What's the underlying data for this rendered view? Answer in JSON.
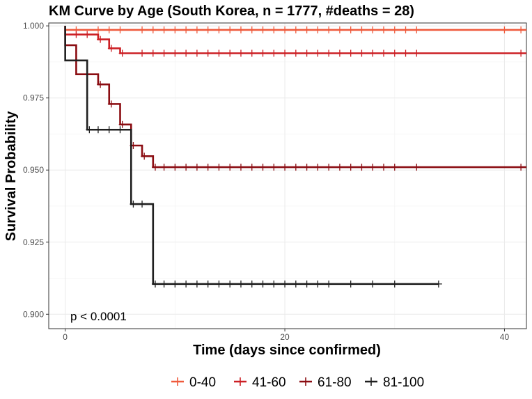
{
  "chart_data": {
    "type": "line",
    "title": "KM Curve by Age (South Korea, n = 1777, #deaths = 28)",
    "xlabel": "Time (days since confirmed)",
    "ylabel": "Survival Probability",
    "xlim": [
      -1.5,
      42
    ],
    "ylim": [
      0.895,
      1.001
    ],
    "x_ticks": [
      0,
      20,
      40
    ],
    "x_tick_labels": [
      "0",
      "20",
      "40"
    ],
    "y_ticks": [
      0.9,
      0.925,
      0.95,
      0.975,
      1.0
    ],
    "y_tick_labels": [
      "0.900",
      "0.925",
      "0.950",
      "0.975",
      "1.000"
    ],
    "grid": true,
    "legend_position": "bottom",
    "annotation": "p < 0.0001",
    "series": [
      {
        "name": "0-40",
        "color": "#ef5a3c",
        "steps": [
          [
            0,
            1.0
          ],
          [
            0,
            0.9986
          ],
          [
            42,
            0.9986
          ]
        ],
        "censor_x": [
          1,
          3,
          4,
          5,
          7,
          8,
          9,
          10,
          11,
          12,
          13,
          14,
          15,
          16,
          17,
          18,
          19,
          20,
          21,
          22,
          23,
          24,
          25,
          26,
          27,
          28,
          29,
          30,
          31,
          32,
          40,
          41.5
        ]
      },
      {
        "name": "41-60",
        "color": "#cc1f24",
        "steps": [
          [
            0,
            1.0
          ],
          [
            0,
            0.997
          ],
          [
            3,
            0.997
          ],
          [
            3,
            0.9953
          ],
          [
            4,
            0.9953
          ],
          [
            4,
            0.9922
          ],
          [
            5,
            0.9922
          ],
          [
            5,
            0.9905
          ],
          [
            42,
            0.9905
          ]
        ],
        "censor_x": [
          1,
          2,
          3.2,
          4.2,
          5.2,
          7,
          8,
          9,
          10,
          11,
          12,
          13,
          14,
          15,
          16,
          17,
          18,
          19,
          20,
          21,
          22,
          23,
          24,
          25,
          26,
          27,
          28,
          29,
          30,
          31,
          32,
          41.5
        ]
      },
      {
        "name": "61-80",
        "color": "#8b0d12",
        "steps": [
          [
            0,
            1.0
          ],
          [
            0,
            0.9933
          ],
          [
            1,
            0.9933
          ],
          [
            1,
            0.9832
          ],
          [
            3,
            0.9832
          ],
          [
            3,
            0.9797
          ],
          [
            4,
            0.9797
          ],
          [
            4,
            0.9729
          ],
          [
            5,
            0.9729
          ],
          [
            5,
            0.9658
          ],
          [
            6,
            0.9658
          ],
          [
            6,
            0.9585
          ],
          [
            7,
            0.9585
          ],
          [
            7,
            0.9548
          ],
          [
            8,
            0.9548
          ],
          [
            8,
            0.951
          ],
          [
            42,
            0.951
          ]
        ],
        "censor_x": [
          2,
          3.2,
          4.2,
          5.2,
          6.2,
          7.2,
          8.2,
          9,
          10,
          11,
          12,
          13,
          14,
          15,
          16,
          17,
          18,
          19,
          20,
          21,
          22,
          23,
          24,
          25,
          26,
          27,
          28,
          29,
          30,
          32,
          41.5
        ]
      },
      {
        "name": "81-100",
        "color": "#1f1f1f",
        "steps": [
          [
            0,
            1.0
          ],
          [
            0,
            0.988
          ],
          [
            2,
            0.988
          ],
          [
            2,
            0.964
          ],
          [
            6,
            0.964
          ],
          [
            6,
            0.9382
          ],
          [
            8,
            0.9382
          ],
          [
            8,
            0.9105
          ],
          [
            34,
            0.9105
          ]
        ],
        "censor_x": [
          2.2,
          3,
          4,
          5,
          6.2,
          7,
          8.2,
          9,
          10,
          11,
          12,
          13,
          14,
          15,
          16,
          17,
          18,
          19,
          20,
          21,
          22,
          23,
          24,
          26,
          28,
          30,
          34
        ]
      }
    ]
  }
}
